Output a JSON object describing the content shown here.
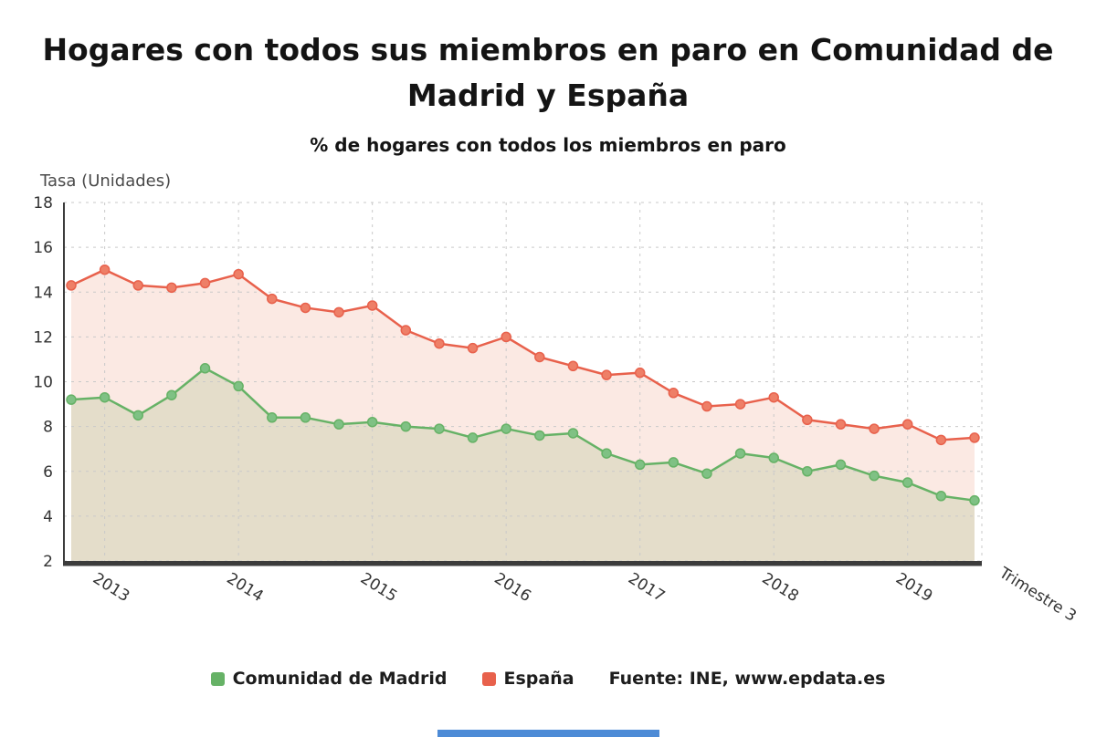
{
  "title": {
    "line1": "Hogares con todos sus miembros en paro en Comunidad de",
    "line2": "Madrid y España"
  },
  "subtitle": "% de hogares con todos los miembros en paro",
  "y_axis_title": "Tasa (Unidades)",
  "x_axis_title": "Trimestre 3",
  "source": "Fuente: INE, www.epdata.es",
  "accent_bar_color": "#4d8bd6",
  "legend": [
    {
      "label": "Comunidad de Madrid",
      "color": "#66b266"
    },
    {
      "label": "España",
      "color": "#e8614c"
    }
  ],
  "chart_data": {
    "type": "line",
    "title": "Hogares con todos sus miembros en paro en Comunidad de Madrid y España",
    "subtitle": "% de hogares con todos los miembros en paro",
    "ylabel": "Tasa (Unidades)",
    "xlabel": "Trimestre",
    "ylim": [
      2,
      18
    ],
    "y_ticks": [
      2,
      4,
      6,
      8,
      10,
      12,
      14,
      16,
      18
    ],
    "grid": true,
    "legend_position": "bottom",
    "x": [
      "2012T4",
      "2013T1",
      "2013T2",
      "2013T3",
      "2013T4",
      "2014T1",
      "2014T2",
      "2014T3",
      "2014T4",
      "2015T1",
      "2015T2",
      "2015T3",
      "2015T4",
      "2016T1",
      "2016T2",
      "2016T3",
      "2016T4",
      "2017T1",
      "2017T2",
      "2017T3",
      "2017T4",
      "2018T1",
      "2018T2",
      "2018T3",
      "2018T4",
      "2019T1",
      "2019T2",
      "2019T3"
    ],
    "x_ticks": [
      {
        "label": "2013",
        "index": 1
      },
      {
        "label": "2014",
        "index": 5
      },
      {
        "label": "2015",
        "index": 9
      },
      {
        "label": "2016",
        "index": 13
      },
      {
        "label": "2017",
        "index": 17
      },
      {
        "label": "2018",
        "index": 21
      },
      {
        "label": "2019",
        "index": 25
      }
    ],
    "series": [
      {
        "id": "madrid",
        "name": "Comunidad de Madrid",
        "color": "#66b266",
        "marker_fill": "#7fc184",
        "area_fill": "#e4ddca",
        "values": [
          9.2,
          9.3,
          8.5,
          9.4,
          10.6,
          9.8,
          8.4,
          8.4,
          8.1,
          8.2,
          8.0,
          7.9,
          7.5,
          7.9,
          7.6,
          7.7,
          6.8,
          6.3,
          6.4,
          5.9,
          6.8,
          6.6,
          6.0,
          6.3,
          5.8,
          5.5,
          4.9,
          4.7
        ]
      },
      {
        "id": "espana",
        "name": "España",
        "color": "#e8614c",
        "marker_fill": "#ee7f67",
        "area_fill": "#fbe9e3",
        "values": [
          14.3,
          15.0,
          14.3,
          14.2,
          14.4,
          14.8,
          13.7,
          13.3,
          13.1,
          13.4,
          12.3,
          11.7,
          11.5,
          12.0,
          11.1,
          10.7,
          10.3,
          10.4,
          9.5,
          8.9,
          9.0,
          9.3,
          8.3,
          8.1,
          7.9,
          8.1,
          7.4,
          7.5
        ]
      }
    ]
  }
}
